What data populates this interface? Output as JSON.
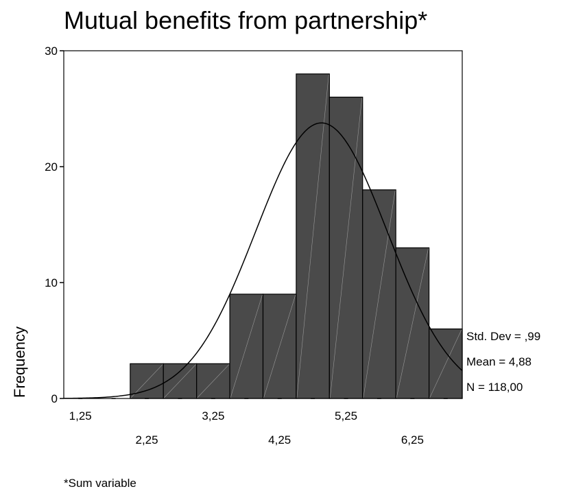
{
  "chart_data": {
    "type": "bar",
    "title": "Mutual benefits from partnership*",
    "xlabel": "",
    "ylabel": "Frequency",
    "ylim": [
      0,
      30
    ],
    "y_ticks": [
      0,
      10,
      20,
      30
    ],
    "bin_width": 0.5,
    "bins": [
      {
        "start": 1.0,
        "end": 1.5,
        "value": 0
      },
      {
        "start": 1.5,
        "end": 2.0,
        "value": 0
      },
      {
        "start": 2.0,
        "end": 2.5,
        "value": 3
      },
      {
        "start": 2.5,
        "end": 3.0,
        "value": 3
      },
      {
        "start": 3.0,
        "end": 3.5,
        "value": 3
      },
      {
        "start": 3.5,
        "end": 4.0,
        "value": 9
      },
      {
        "start": 4.0,
        "end": 4.5,
        "value": 9
      },
      {
        "start": 4.5,
        "end": 5.0,
        "value": 28
      },
      {
        "start": 5.0,
        "end": 5.5,
        "value": 26
      },
      {
        "start": 5.5,
        "end": 6.0,
        "value": 18
      },
      {
        "start": 6.0,
        "end": 6.5,
        "value": 13
      },
      {
        "start": 6.5,
        "end": 7.0,
        "value": 6
      }
    ],
    "x_tick_labels_row1": [
      {
        "x": 1.25,
        "label": "1,25"
      },
      {
        "x": 3.25,
        "label": "3,25"
      },
      {
        "x": 5.25,
        "label": "5,25"
      }
    ],
    "x_tick_labels_row2": [
      {
        "x": 2.25,
        "label": "2,25"
      },
      {
        "x": 4.25,
        "label": "4,25"
      },
      {
        "x": 6.25,
        "label": "6,25"
      }
    ],
    "normal_curve": {
      "mean": 4.88,
      "std_dev": 0.99,
      "n": 118
    },
    "statistics": {
      "std_dev": "Std. Dev = ,99",
      "mean": "Mean = 4,88",
      "n": "N = 118,00"
    },
    "footnote": "*Sum variable",
    "colors": {
      "bar_fill": "#4a4a4a",
      "bar_stroke": "#000000",
      "hatch": "#9a9a9a",
      "curve": "#000000"
    }
  }
}
